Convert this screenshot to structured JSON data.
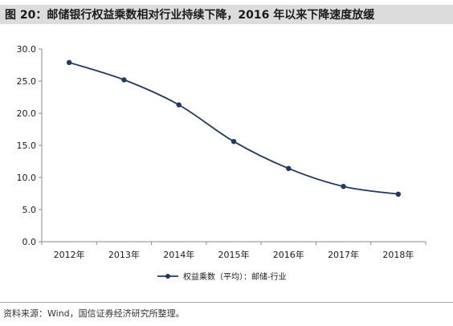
{
  "header": {
    "title": "图 20：邮储银行权益乘数相对行业持续下降，2016 年以来下降速度放缓"
  },
  "footer": {
    "source": "资料来源：Wind，国信证券经济研究所整理。"
  },
  "colors": {
    "series": "#1f3864",
    "title_band": "#dcdcdc"
  },
  "chart_data": {
    "type": "line",
    "title": "",
    "xlabel": "",
    "ylabel": "",
    "categories": [
      "2012年",
      "2013年",
      "2014年",
      "2015年",
      "2016年",
      "2017年",
      "2018年"
    ],
    "series": [
      {
        "name": "权益乘数（平均）：邮储-行业",
        "values": [
          27.9,
          25.2,
          21.3,
          15.6,
          11.4,
          8.6,
          7.4
        ]
      }
    ],
    "ylim": [
      0,
      30
    ],
    "yticks": [
      "0.0",
      "5.0",
      "10.0",
      "15.0",
      "20.0",
      "25.0",
      "30.0"
    ],
    "grid": false,
    "legend_position": "bottom"
  }
}
